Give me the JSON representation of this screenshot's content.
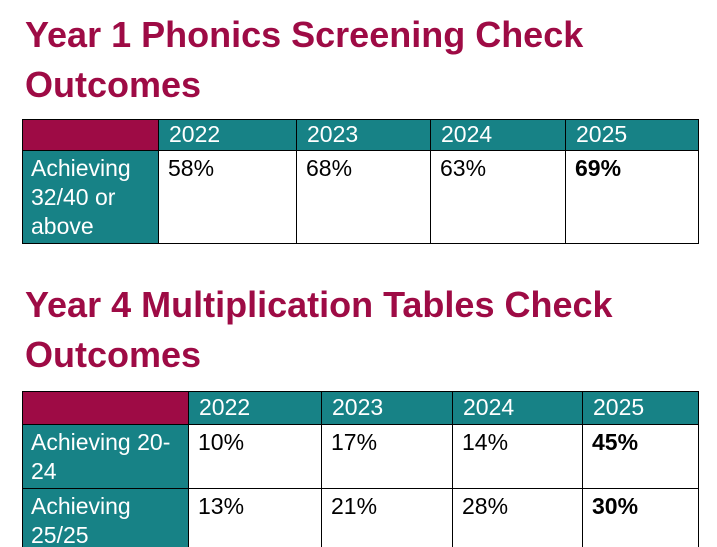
{
  "colors": {
    "brand_crimson": "#9E0B45",
    "brand_teal": "#178286",
    "grid_border": "#000000",
    "header_text": "#ffffff",
    "value_text": "#000000"
  },
  "sections": [
    {
      "title": "Year 1 Phonics Screening Check Outcomes",
      "table": {
        "columns": [
          "",
          "2022",
          "2023",
          "2024",
          "2025"
        ],
        "rows": [
          {
            "label": "Achieving 32/40 or above",
            "values": [
              "58%",
              "68%",
              "63%",
              "69%"
            ],
            "bold_columns": [
              "2025"
            ]
          }
        ]
      }
    },
    {
      "title": "Year 4 Multiplication Tables Check Outcomes",
      "table": {
        "columns": [
          "",
          "2022",
          "2023",
          "2024",
          "2025"
        ],
        "rows": [
          {
            "label": "Achieving 20-24",
            "values": [
              "10%",
              "17%",
              "14%",
              "45%"
            ],
            "bold_columns": [
              "2025"
            ]
          },
          {
            "label": "Achieving 25/25",
            "values": [
              "13%",
              "21%",
              "28%",
              "30%"
            ],
            "bold_columns": [
              "2025"
            ]
          }
        ]
      }
    }
  ]
}
